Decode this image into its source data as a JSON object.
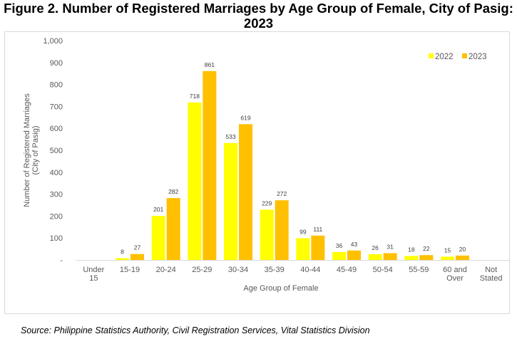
{
  "figure": {
    "title_line1": "Figure 2.  Number of Registered Marriages by Age Group of Female, City of Pasig:",
    "title_line2": "2023",
    "source": "Source: Philippine Statistics Authority, Civil Registration Services, Vital Statistics Division"
  },
  "colors": {
    "series_2022": "#ffff00",
    "series_2023": "#ffc000",
    "axis": "#d9d9d9",
    "text": "#595959"
  },
  "chart_data": {
    "type": "bar",
    "categories": [
      [
        "Under",
        "15"
      ],
      [
        "15-19"
      ],
      [
        "20-24"
      ],
      [
        "25-29"
      ],
      [
        "30-34"
      ],
      [
        "35-39"
      ],
      [
        "40-44"
      ],
      [
        "45-49"
      ],
      [
        "50-54"
      ],
      [
        "55-59"
      ],
      [
        "60 and",
        "Over"
      ],
      [
        "Not",
        "Stated"
      ]
    ],
    "series": [
      {
        "name": "2022",
        "values": [
          0,
          8,
          201,
          718,
          533,
          229,
          99,
          36,
          26,
          18,
          15,
          0
        ],
        "labels": [
          "",
          "8",
          "201",
          "718",
          "533",
          "229",
          "99",
          "36",
          "26",
          "18",
          "15",
          ""
        ]
      },
      {
        "name": "2023",
        "values": [
          0,
          27,
          282,
          861,
          619,
          272,
          111,
          43,
          31,
          22,
          20,
          0
        ],
        "labels": [
          "",
          "27",
          "282",
          "861",
          "619",
          "272",
          "111",
          "43",
          "31",
          "22",
          "20",
          ""
        ]
      }
    ],
    "xlabel": "Age Group of Female",
    "ylabel": [
      "Number of Registered Marriages",
      "(City of Pasig)"
    ],
    "ylim": [
      0,
      1000
    ],
    "yticks": [
      "-",
      "100",
      "200",
      "300",
      "400",
      "500",
      "600",
      "700",
      "800",
      "900",
      "1,000"
    ],
    "legend_position": "top-right",
    "grid": false
  }
}
